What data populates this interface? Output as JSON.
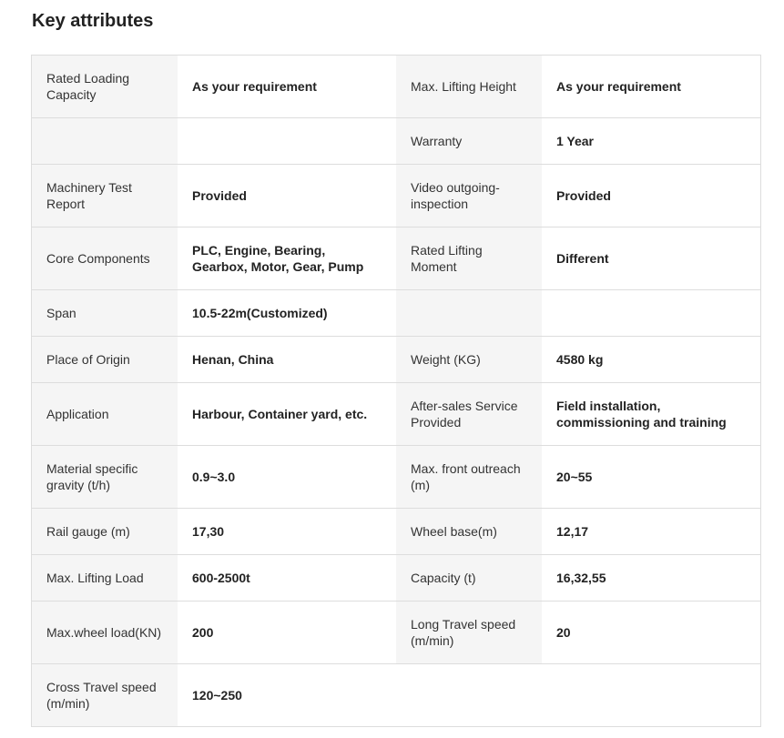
{
  "title": "Key attributes",
  "rows": [
    {
      "size": "t",
      "cells": [
        "Rated Loading Capacity",
        "As your requirement",
        "Max. Lifting Height",
        "As your requirement"
      ]
    },
    {
      "size": "s",
      "cells": [
        "",
        "",
        "Warranty",
        "1 Year"
      ]
    },
    {
      "size": "t",
      "cells": [
        "Machinery Test Report",
        "Provided",
        "Video outgoing-inspection",
        "Provided"
      ]
    },
    {
      "size": "t",
      "cells": [
        "Core Components",
        "PLC, Engine, Bearing, Gearbox, Motor, Gear, Pump",
        "Rated Lifting Moment",
        "Different"
      ]
    },
    {
      "size": "s",
      "cells": [
        "Span",
        "10.5-22m(Customized)",
        "",
        ""
      ]
    },
    {
      "size": "s",
      "cells": [
        "Place of Origin",
        "Henan, China",
        "Weight (KG)",
        "4580 kg"
      ]
    },
    {
      "size": "t",
      "cells": [
        "Application",
        "Harbour, Container yard, etc.",
        "After-sales Service Provided",
        "Field installation, commissioning and training"
      ]
    },
    {
      "size": "t",
      "cells": [
        "Material specific gravity (t/h)",
        "0.9~3.0",
        "Max. front outreach (m)",
        "20~55"
      ]
    },
    {
      "size": "s",
      "cells": [
        "Rail gauge (m)",
        "17,30",
        "Wheel base(m)",
        "12,17"
      ]
    },
    {
      "size": "s",
      "cells": [
        "Max. Lifting Load",
        "600-2500t",
        "Capacity (t)",
        "16,32,55"
      ]
    },
    {
      "size": "t",
      "cells": [
        "Max.wheel load(KN)",
        "200",
        "Long Travel speed (m/min)",
        "20"
      ]
    },
    {
      "size": "t",
      "cells": [
        "Cross Travel speed (m/min)",
        "120~250",
        "",
        ""
      ]
    }
  ]
}
